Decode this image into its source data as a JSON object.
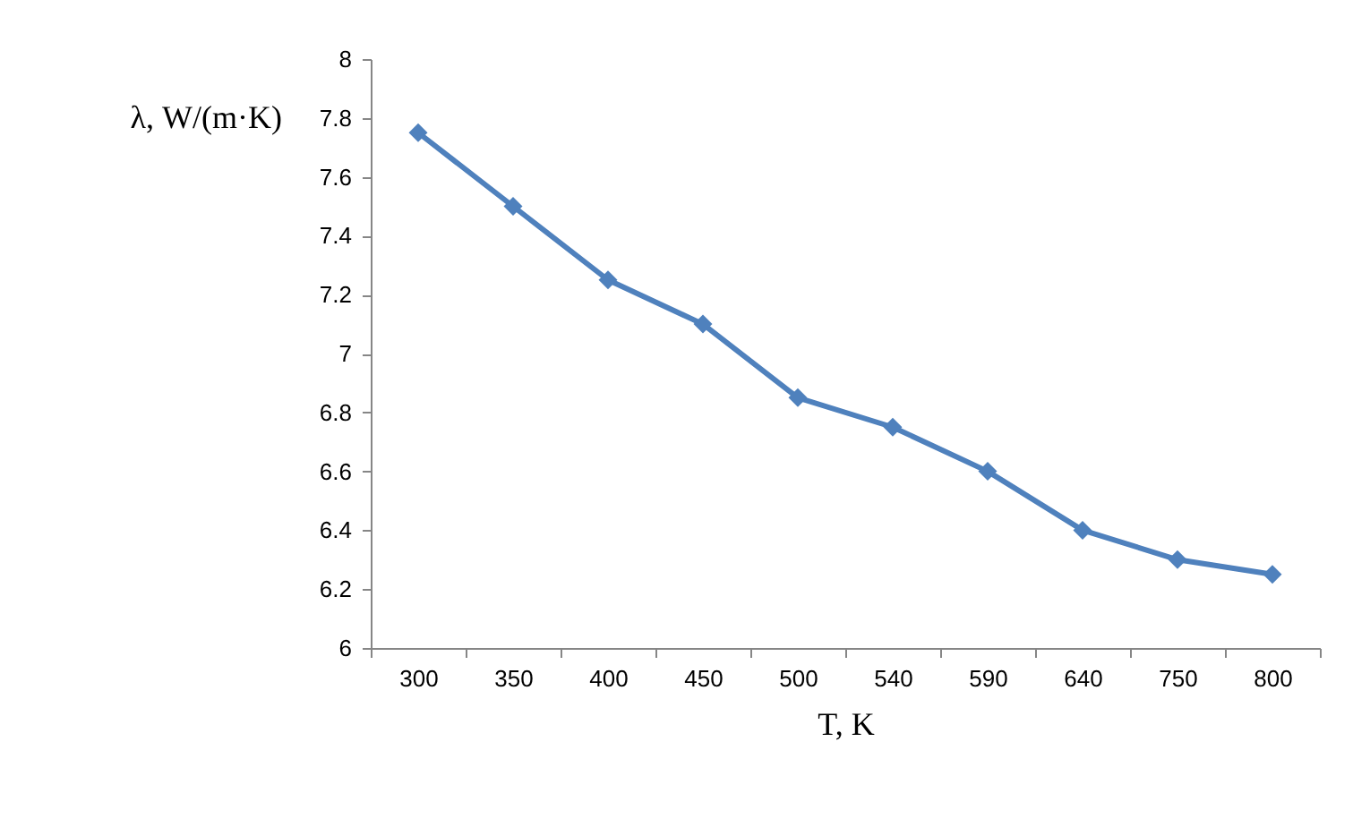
{
  "chart_data": {
    "type": "line",
    "xlabel": "T, K",
    "ylabel": "λ, W/(m·K)",
    "categories": [
      "300",
      "350",
      "400",
      "450",
      "500",
      "540",
      "590",
      "640",
      "750",
      "800"
    ],
    "series": [
      {
        "color": "#4f81bd",
        "values": [
          7.75,
          7.5,
          7.25,
          7.1,
          6.85,
          6.75,
          6.6,
          6.4,
          6.3,
          6.25
        ]
      }
    ],
    "ylim": [
      6,
      8
    ],
    "yticks": [
      6,
      6.2,
      6.4,
      6.6,
      6.8,
      7,
      7.2,
      7.4,
      7.6,
      7.8,
      8
    ],
    "marker": "diamond",
    "line_style": "solid",
    "grid": false,
    "legend": false
  }
}
